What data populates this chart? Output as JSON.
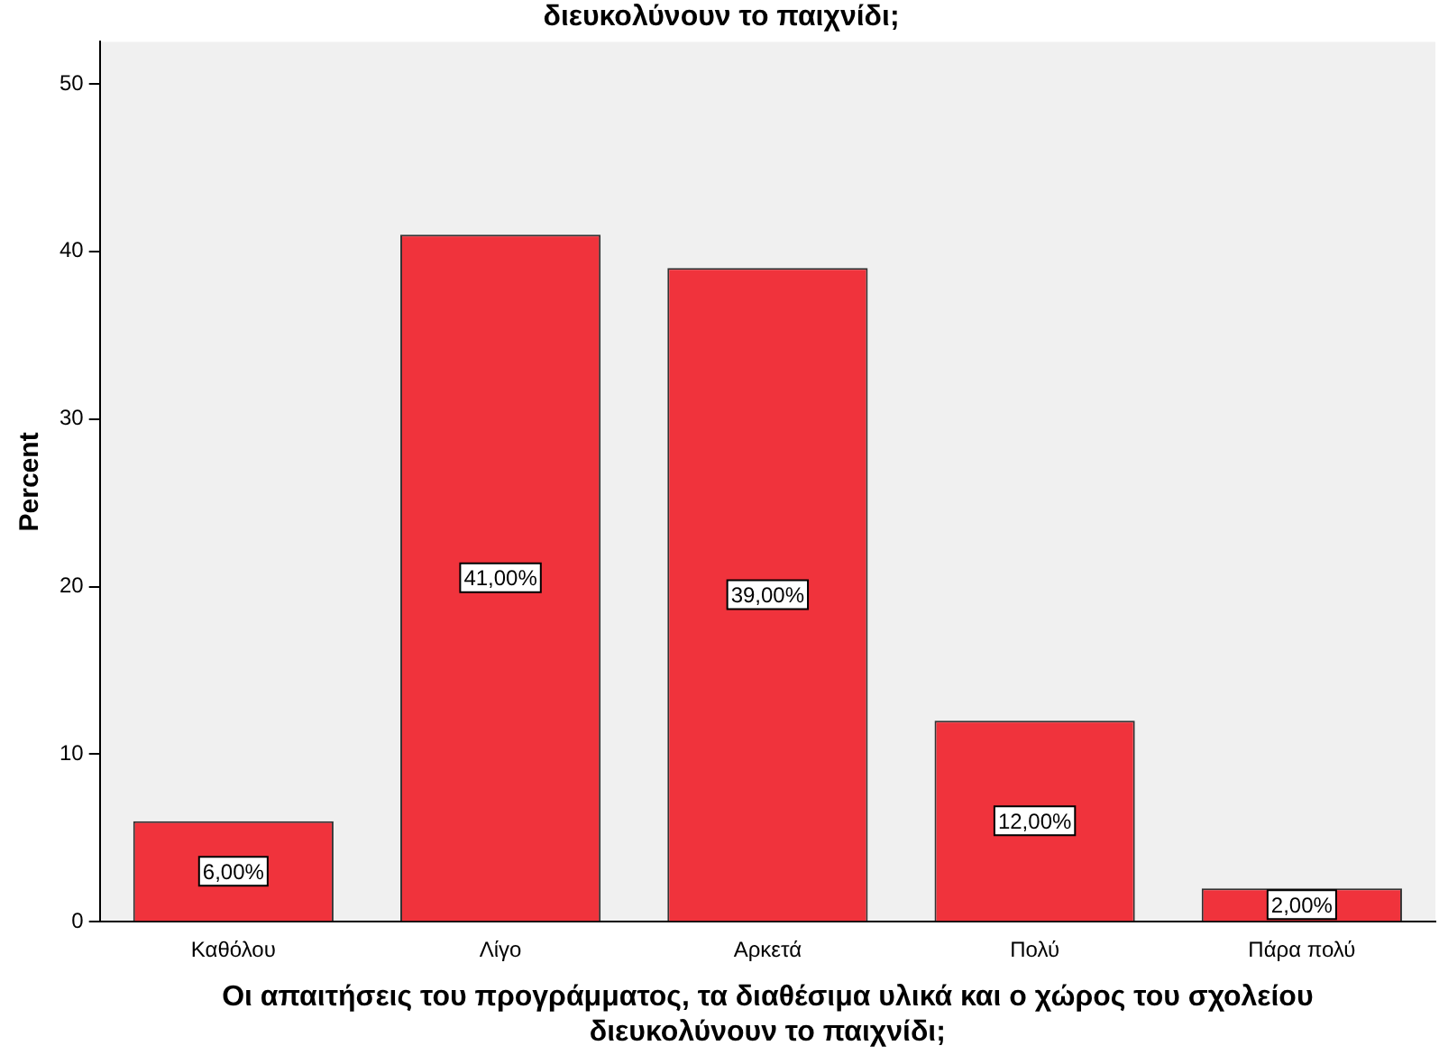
{
  "chart_data": {
    "type": "bar",
    "title": "διευκολύνουν το παιχνίδι;",
    "xlabel": "Οι απαιτήσεις του προγράμματος, τα διαθέσιμα υλικά και ο χώρος του σχολείου διευκολύνουν το παιχνίδι;",
    "ylabel": "Percent",
    "categories": [
      "Καθόλου",
      "Λίγο",
      "Αρκετά",
      "Πολύ",
      "Πάρα πολύ"
    ],
    "values": [
      6,
      41,
      39,
      12,
      2
    ],
    "value_labels": [
      "6,00%",
      "41,00%",
      "39,00%",
      "12,00%",
      "2,00%"
    ],
    "color": "#f0333c",
    "ylim": [
      0,
      52.5
    ],
    "yticks": [
      0,
      10,
      20,
      30,
      40,
      50
    ],
    "grid": false,
    "legend": false
  }
}
